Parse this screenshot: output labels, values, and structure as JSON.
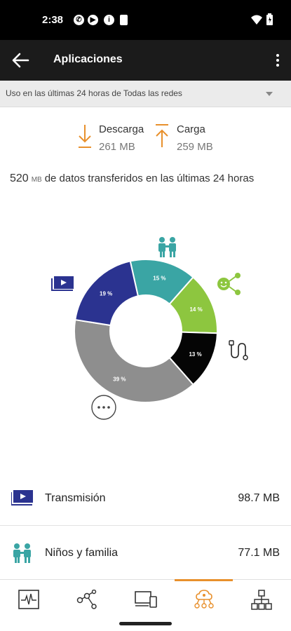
{
  "status_bar": {
    "time": "2:38",
    "notif_icons": [
      "wifi-calling-icon",
      "play-icon",
      "info-icon",
      "sim-icon"
    ]
  },
  "app_bar": {
    "title": "Aplicaciones"
  },
  "filter": {
    "label": "Uso en las últimas 24 horas de Todas las redes"
  },
  "traffic": {
    "download_label": "Descarga",
    "download_value": "261 MB",
    "upload_label": "Carga",
    "upload_value": "259 MB",
    "accent_color": "#e8902c"
  },
  "total": {
    "amount": "520",
    "unit": "MB",
    "text": "de datos transferidos en las últimas 24 horas"
  },
  "chart_data": {
    "type": "pie",
    "donut": true,
    "slices": [
      {
        "category": "Niños y familia",
        "label": "15 %",
        "value": 15,
        "color": "#3aa5a4",
        "icon": "family-icon"
      },
      {
        "category": "Redes sociales",
        "label": "14 %",
        "value": 14,
        "color": "#8dc63f",
        "icon": "social-share-icon"
      },
      {
        "category": "Dispositivos",
        "label": "13 %",
        "value": 13,
        "color": "#050505",
        "icon": "cable-icon"
      },
      {
        "category": "Otros",
        "label": "39 %",
        "value": 39,
        "color": "#8e8e8e",
        "icon": "more-icon"
      },
      {
        "category": "Transmisión",
        "label": "19 %",
        "value": 19,
        "color": "#2b3390",
        "icon": "video-icon"
      }
    ]
  },
  "list": [
    {
      "name": "Transmisión",
      "value": "98.7 MB",
      "icon": "video-icon",
      "color": "#2b3390"
    },
    {
      "name": "Niños y familia",
      "value": "77.1 MB",
      "icon": "family-icon",
      "color": "#3aa5a4"
    }
  ],
  "bottom_nav": {
    "items": [
      "activity-monitor-icon",
      "network-nodes-icon",
      "devices-icon",
      "apps-cloud-icon",
      "topology-icon"
    ],
    "active_index": 3
  }
}
